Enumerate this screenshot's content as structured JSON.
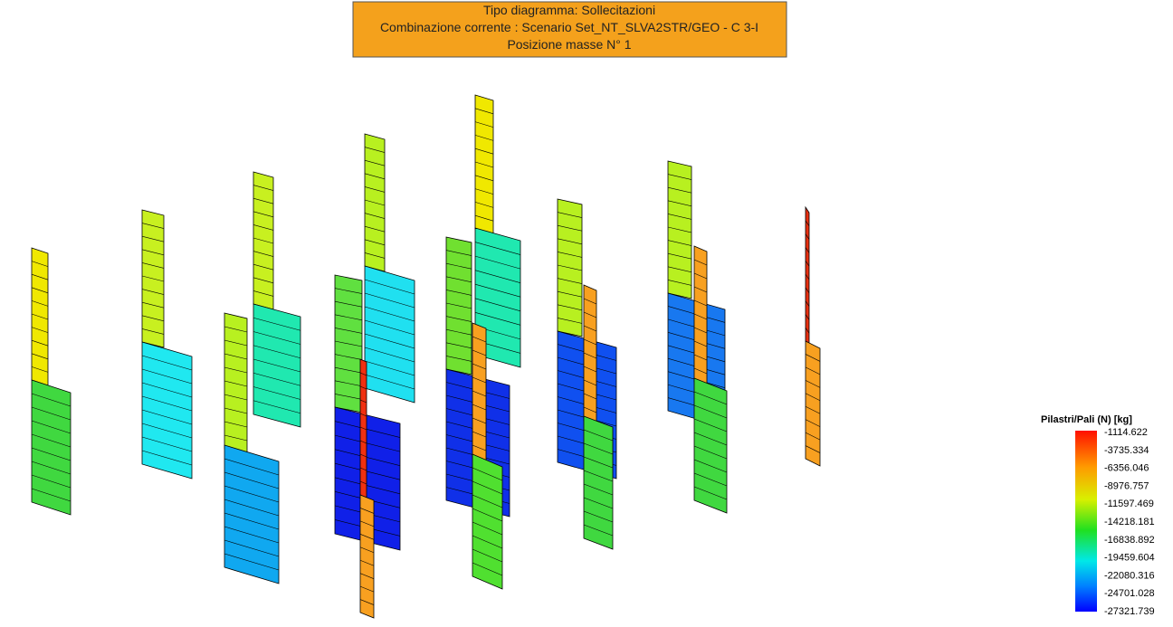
{
  "header": {
    "lines": [
      "Tipo diagramma: Sollecitazioni",
      "Combinazione corrente : Scenario Set_NT_SLVA2STR/GEO - C 3-I",
      "Posizione masse N° 1"
    ]
  },
  "legend": {
    "title": "Pilastri/Pali (N) [kg]",
    "labels": [
      "-1114.622",
      "-3735.334",
      "-6356.046",
      "-8976.757",
      "-11597.469",
      "-14218.181",
      "-16838.892",
      "-19459.604",
      "-22080.316",
      "-24701.028",
      "-27321.739"
    ]
  }
}
